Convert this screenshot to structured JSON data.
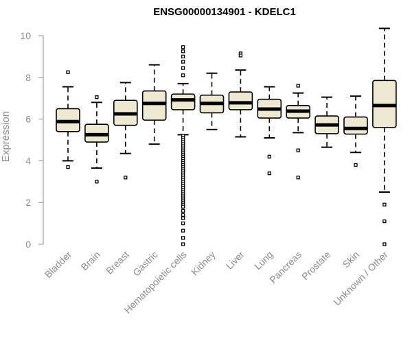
{
  "chart_data": {
    "type": "box",
    "title": "ENSG00000134901 - KDELC1",
    "xlabel": "",
    "ylabel": "Expression",
    "ylim": [
      0,
      10
    ],
    "yticks": [
      0,
      2,
      4,
      6,
      8,
      10
    ],
    "grid": false,
    "colors": {
      "box_fill": "#efe9d2",
      "stroke": "#000000",
      "label": "#8c8c8c"
    },
    "categories": [
      "Bladder",
      "Brain",
      "Breast",
      "Gastric",
      "Hematopoietic cells",
      "Kidney",
      "Liver",
      "Lung",
      "Pancreas",
      "Prostate",
      "Skin",
      "Unknown / Other"
    ],
    "boxes": [
      {
        "name": "Bladder",
        "min": 4.0,
        "q1": 5.4,
        "median": 5.88,
        "q3": 6.5,
        "max": 7.55,
        "outliers": [
          8.25,
          3.7
        ]
      },
      {
        "name": "Brain",
        "min": 3.65,
        "q1": 4.9,
        "median": 5.25,
        "q3": 5.75,
        "max": 6.8,
        "outliers": [
          7.05,
          3.0
        ]
      },
      {
        "name": "Breast",
        "min": 4.35,
        "q1": 5.7,
        "median": 6.25,
        "q3": 6.9,
        "max": 7.75,
        "outliers": [
          3.2
        ]
      },
      {
        "name": "Gastric",
        "min": 4.8,
        "q1": 5.95,
        "median": 6.75,
        "q3": 7.35,
        "max": 8.6,
        "outliers": []
      },
      {
        "name": "Hematopoietic cells",
        "min": 5.25,
        "q1": 6.45,
        "median": 6.92,
        "q3": 7.2,
        "max": 7.7,
        "outliers": [
          9.45,
          9.25,
          9.0,
          8.75,
          8.45,
          8.1,
          5.2,
          5.1,
          5.0,
          4.9,
          4.8,
          4.7,
          4.6,
          4.5,
          4.4,
          4.3,
          4.2,
          4.1,
          4.0,
          3.9,
          3.8,
          3.7,
          3.6,
          3.5,
          3.4,
          3.3,
          3.2,
          3.1,
          3.0,
          2.9,
          2.8,
          2.7,
          2.6,
          2.5,
          2.4,
          2.3,
          2.2,
          2.1,
          2.0,
          1.9,
          1.8,
          1.6,
          1.4,
          1.25,
          1.0,
          0.65,
          0.3,
          0.0
        ]
      },
      {
        "name": "Kidney",
        "min": 5.5,
        "q1": 6.3,
        "median": 6.75,
        "q3": 7.15,
        "max": 8.2,
        "outliers": []
      },
      {
        "name": "Liver",
        "min": 5.15,
        "q1": 6.45,
        "median": 6.78,
        "q3": 7.3,
        "max": 8.35,
        "outliers": [
          9.15,
          9.05
        ]
      },
      {
        "name": "Lung",
        "min": 5.1,
        "q1": 6.05,
        "median": 6.48,
        "q3": 6.95,
        "max": 7.55,
        "outliers": [
          4.2,
          3.4
        ]
      },
      {
        "name": "Pancreas",
        "min": 5.35,
        "q1": 6.05,
        "median": 6.38,
        "q3": 6.65,
        "max": 7.25,
        "outliers": [
          7.6,
          4.5,
          3.2
        ]
      },
      {
        "name": "Prostate",
        "min": 4.65,
        "q1": 5.3,
        "median": 5.72,
        "q3": 6.15,
        "max": 7.05,
        "outliers": []
      },
      {
        "name": "Skin",
        "min": 4.4,
        "q1": 5.28,
        "median": 5.55,
        "q3": 6.1,
        "max": 7.1,
        "outliers": [
          3.8
        ]
      },
      {
        "name": "Unknown / Other",
        "min": 2.5,
        "q1": 5.6,
        "median": 6.65,
        "q3": 7.85,
        "max": 10.35,
        "outliers": [
          1.9,
          1.1,
          0.0
        ]
      }
    ]
  }
}
